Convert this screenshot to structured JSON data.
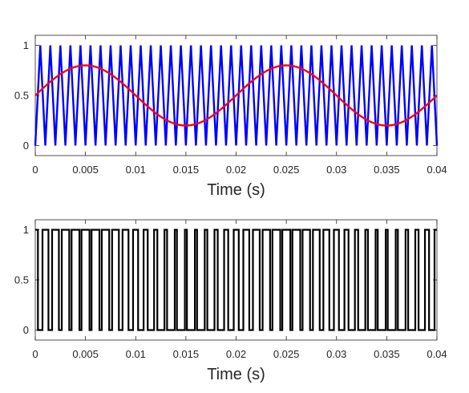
{
  "chart_data": [
    {
      "type": "line",
      "title": "",
      "xlabel": "Time (s)",
      "ylabel": "",
      "xlim": [
        0,
        0.04
      ],
      "ylim": [
        -0.1,
        1.1
      ],
      "xticks": [
        0,
        0.005,
        0.01,
        0.015,
        0.02,
        0.025,
        0.03,
        0.035,
        0.04
      ],
      "xtick_labels": [
        "0",
        "0.005",
        "0.01",
        "0.015",
        "0.02",
        "0.025",
        "0.03",
        "0.035",
        "0.04"
      ],
      "yticks": [
        0,
        0.5,
        1
      ],
      "ytick_labels": [
        "0",
        "0.5",
        "1"
      ],
      "grid": false,
      "series": [
        {
          "role": "triangular carrier",
          "color": "#0000ff",
          "waveform": "triangle",
          "frequency_hz": 1000,
          "min": 0,
          "max": 1,
          "phase": "starts at 0, peaks at 0.0005 s"
        },
        {
          "role": "sinusoidal reference",
          "color": "#ff0000",
          "waveform": "sine",
          "frequency_hz": 50,
          "offset": 0.5,
          "amplitude": 0.3,
          "x": [
            0,
            0.005,
            0.01,
            0.015,
            0.02,
            0.025,
            0.03,
            0.035,
            0.04
          ],
          "y": [
            0.5,
            0.8,
            0.5,
            0.2,
            0.5,
            0.8,
            0.5,
            0.2,
            0.5
          ]
        }
      ]
    },
    {
      "type": "line",
      "title": "",
      "xlabel": "Time (s)",
      "ylabel": "",
      "xlim": [
        0,
        0.04
      ],
      "ylim": [
        -0.1,
        1.1
      ],
      "xticks": [
        0,
        0.005,
        0.01,
        0.015,
        0.02,
        0.025,
        0.03,
        0.035,
        0.04
      ],
      "xtick_labels": [
        "0",
        "0.005",
        "0.01",
        "0.015",
        "0.02",
        "0.025",
        "0.03",
        "0.035",
        "0.04"
      ],
      "yticks": [
        0,
        0.5,
        1
      ],
      "ytick_labels": [
        "0",
        "0.5",
        "1"
      ],
      "grid": false,
      "series": [
        {
          "role": "PWM output",
          "color": "#000000",
          "waveform": "square",
          "levels": [
            0,
            1
          ],
          "rule": "1 when reference > carrier, else 0"
        }
      ]
    }
  ]
}
